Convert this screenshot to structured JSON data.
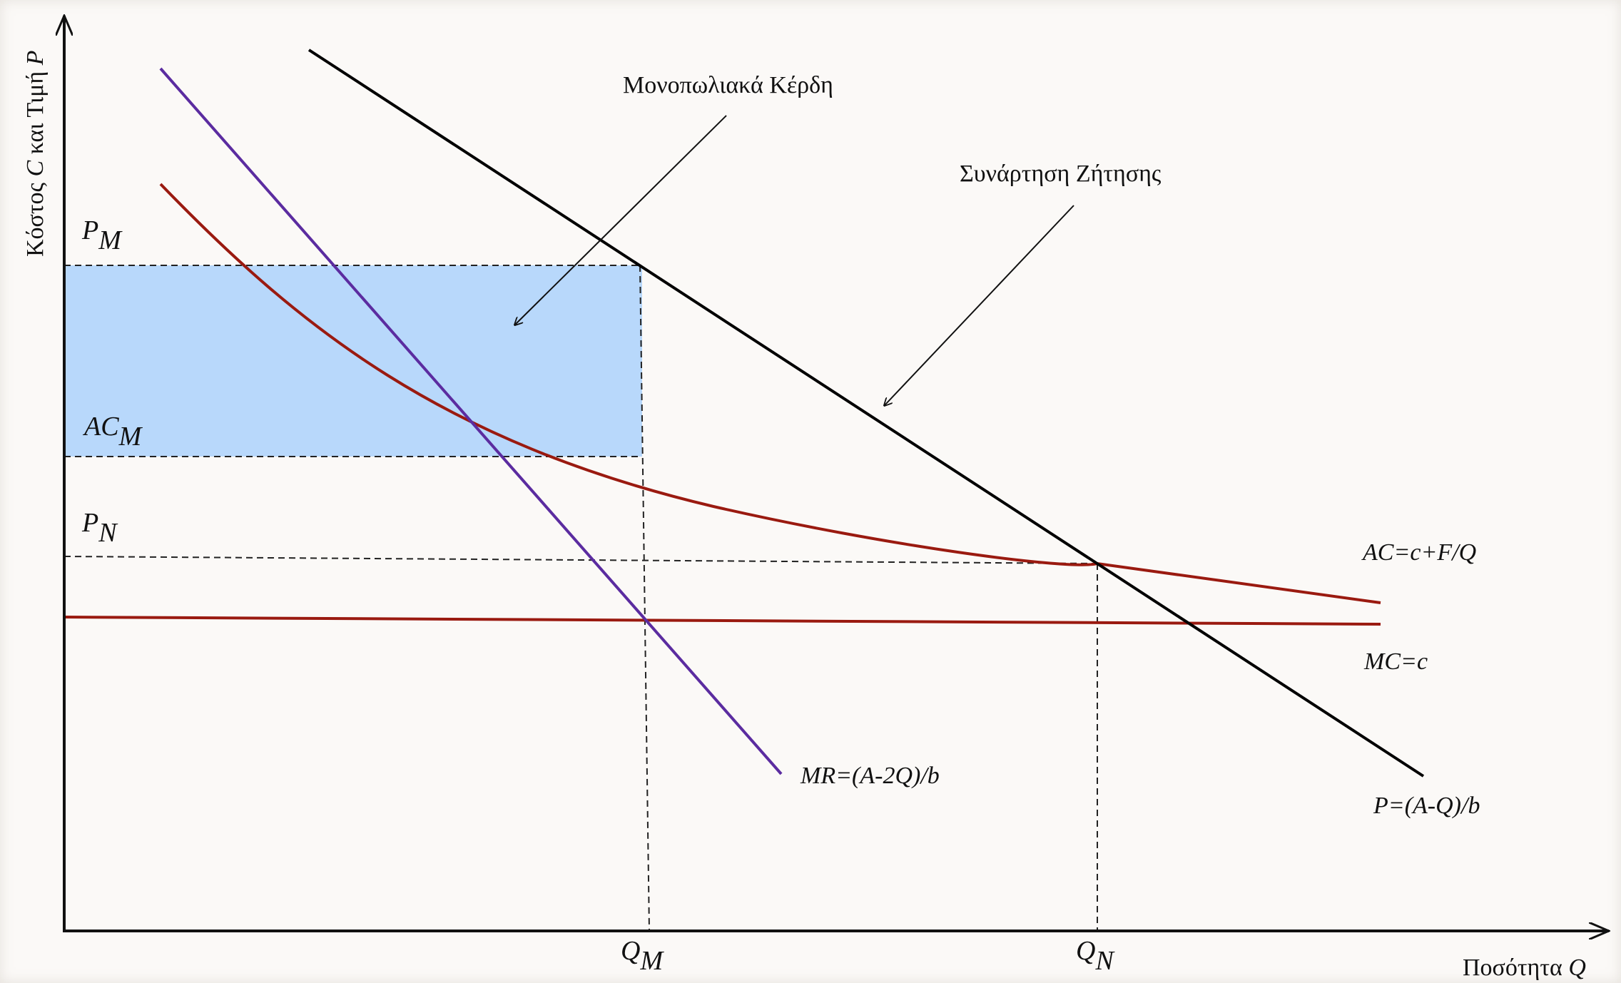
{
  "y_axis_label": {
    "prefix": "Κόστος ",
    "var_c": "C",
    "mid": " και Τιμή ",
    "var_p": "P"
  },
  "x_axis_label": {
    "prefix": "Ποσότητα ",
    "var_q": "Q"
  },
  "price_labels": {
    "pm": {
      "main": "P",
      "sub": "M"
    },
    "acm": {
      "main": "AC",
      "sub": "M"
    },
    "pn": {
      "main": "P",
      "sub": "N"
    }
  },
  "quantity_labels": {
    "qm": {
      "main": "Q",
      "sub": "M"
    },
    "qn": {
      "main": "Q",
      "sub": "N"
    }
  },
  "annotations": {
    "monopoly_profits": "Μονοπωλιακά Κέρδη",
    "demand_function": "Συνάρτηση Ζήτησης"
  },
  "curve_labels": {
    "ac": "AC=c+F/Q",
    "mc": "MC=c",
    "mr": "MR=(A-2Q)/b",
    "demand": "P=(A-Q)/b"
  },
  "colors": {
    "axes": "#111111",
    "demand": "#000000",
    "mr": "#5b2ca0",
    "cost": "#9a1a10",
    "profit_fill": "#b8d8fb",
    "guides": "#222222"
  }
}
